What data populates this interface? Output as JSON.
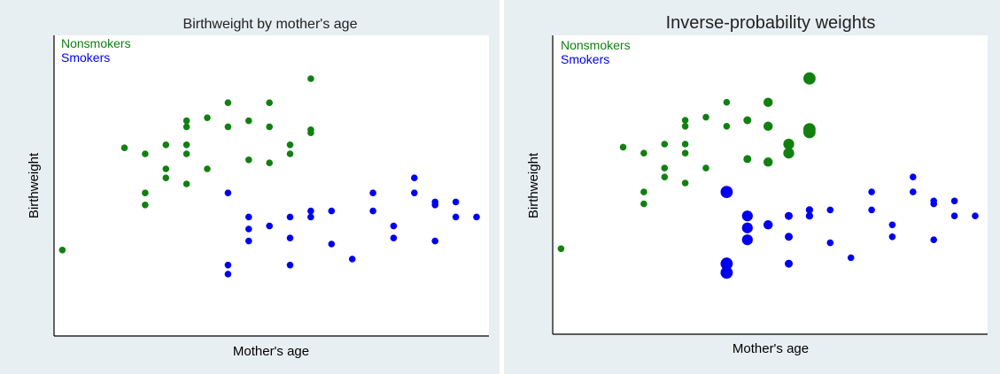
{
  "chart_data": [
    {
      "type": "scatter",
      "title": "Birthweight by mother's age",
      "xlabel": "Mother's age",
      "ylabel": "Birthweight",
      "grid": false,
      "axes_ticks": false,
      "xlim": [
        14,
        35
      ],
      "ylim": [
        0,
        100
      ],
      "legend": {
        "placement": "top-left",
        "entries": [
          "Nonsmokers",
          "Smokers"
        ]
      },
      "series": [
        {
          "name": "Nonsmokers",
          "color": "#118011",
          "points": [
            {
              "x": 14.4,
              "y": 28.6
            },
            {
              "x": 17.4,
              "y": 62.6
            },
            {
              "x": 18.4,
              "y": 60.6
            },
            {
              "x": 18.4,
              "y": 47.6
            },
            {
              "x": 18.4,
              "y": 43.6
            },
            {
              "x": 19.4,
              "y": 63.6
            },
            {
              "x": 19.4,
              "y": 55.6
            },
            {
              "x": 19.4,
              "y": 52.6
            },
            {
              "x": 20.4,
              "y": 71.6
            },
            {
              "x": 20.4,
              "y": 69.6
            },
            {
              "x": 20.4,
              "y": 63.6
            },
            {
              "x": 20.4,
              "y": 60.6
            },
            {
              "x": 20.4,
              "y": 50.6
            },
            {
              "x": 21.4,
              "y": 72.6
            },
            {
              "x": 21.4,
              "y": 55.6
            },
            {
              "x": 22.4,
              "y": 77.6
            },
            {
              "x": 22.4,
              "y": 69.6
            },
            {
              "x": 23.4,
              "y": 71.6
            },
            {
              "x": 23.4,
              "y": 58.6
            },
            {
              "x": 24.4,
              "y": 77.6
            },
            {
              "x": 24.4,
              "y": 69.6
            },
            {
              "x": 24.4,
              "y": 57.6
            },
            {
              "x": 25.4,
              "y": 63.6
            },
            {
              "x": 25.4,
              "y": 60.6
            },
            {
              "x": 26.4,
              "y": 85.6
            },
            {
              "x": 26.4,
              "y": 68.6
            },
            {
              "x": 26.4,
              "y": 67.6
            }
          ]
        },
        {
          "name": "Smokers",
          "color": "#0000f0",
          "points": [
            {
              "x": 22.4,
              "y": 47.6
            },
            {
              "x": 22.4,
              "y": 23.6
            },
            {
              "x": 22.4,
              "y": 20.6
            },
            {
              "x": 23.4,
              "y": 39.6
            },
            {
              "x": 23.4,
              "y": 35.6
            },
            {
              "x": 23.4,
              "y": 31.6
            },
            {
              "x": 24.4,
              "y": 36.6
            },
            {
              "x": 25.4,
              "y": 39.6
            },
            {
              "x": 25.4,
              "y": 32.6
            },
            {
              "x": 25.4,
              "y": 23.6
            },
            {
              "x": 26.4,
              "y": 41.6
            },
            {
              "x": 26.4,
              "y": 39.6
            },
            {
              "x": 27.4,
              "y": 41.6
            },
            {
              "x": 27.4,
              "y": 30.6
            },
            {
              "x": 28.4,
              "y": 25.6
            },
            {
              "x": 29.4,
              "y": 47.6
            },
            {
              "x": 29.4,
              "y": 41.6
            },
            {
              "x": 30.4,
              "y": 36.6
            },
            {
              "x": 30.4,
              "y": 32.6
            },
            {
              "x": 31.4,
              "y": 52.6
            },
            {
              "x": 31.4,
              "y": 47.6
            },
            {
              "x": 32.4,
              "y": 44.6
            },
            {
              "x": 32.4,
              "y": 43.6
            },
            {
              "x": 32.4,
              "y": 31.6
            },
            {
              "x": 33.4,
              "y": 44.6
            },
            {
              "x": 33.4,
              "y": 39.6
            },
            {
              "x": 34.4,
              "y": 39.6
            }
          ]
        }
      ]
    },
    {
      "type": "scatter",
      "title": "Inverse-probability weights",
      "xlabel": "Mother's age",
      "ylabel": "Birthweight",
      "grid": false,
      "axes_ticks": false,
      "xlim": [
        14,
        35
      ],
      "ylim": [
        0,
        100
      ],
      "legend": {
        "placement": "top-left",
        "entries": [
          "Nonsmokers",
          "Smokers"
        ]
      },
      "marker_size_encodes": "inverse-probability weight (relative)",
      "series": [
        {
          "name": "Nonsmokers",
          "color": "#118011",
          "points": [
            {
              "x": 14.4,
              "y": 28.6,
              "w": 1
            },
            {
              "x": 17.4,
              "y": 62.6,
              "w": 1
            },
            {
              "x": 18.4,
              "y": 60.6,
              "w": 1
            },
            {
              "x": 18.4,
              "y": 47.6,
              "w": 1
            },
            {
              "x": 18.4,
              "y": 43.6,
              "w": 1
            },
            {
              "x": 19.4,
              "y": 63.6,
              "w": 1
            },
            {
              "x": 19.4,
              "y": 55.6,
              "w": 1
            },
            {
              "x": 19.4,
              "y": 52.6,
              "w": 1
            },
            {
              "x": 20.4,
              "y": 71.6,
              "w": 1
            },
            {
              "x": 20.4,
              "y": 69.6,
              "w": 1
            },
            {
              "x": 20.4,
              "y": 63.6,
              "w": 1
            },
            {
              "x": 20.4,
              "y": 60.6,
              "w": 1
            },
            {
              "x": 20.4,
              "y": 50.6,
              "w": 1
            },
            {
              "x": 21.4,
              "y": 72.6,
              "w": 1
            },
            {
              "x": 21.4,
              "y": 55.6,
              "w": 1
            },
            {
              "x": 22.4,
              "y": 77.6,
              "w": 1
            },
            {
              "x": 22.4,
              "y": 69.6,
              "w": 1
            },
            {
              "x": 23.4,
              "y": 71.6,
              "w": 1.4
            },
            {
              "x": 23.4,
              "y": 58.6,
              "w": 1.4
            },
            {
              "x": 24.4,
              "y": 77.6,
              "w": 1.9
            },
            {
              "x": 24.4,
              "y": 69.6,
              "w": 1.9
            },
            {
              "x": 24.4,
              "y": 57.6,
              "w": 1.9
            },
            {
              "x": 25.4,
              "y": 63.6,
              "w": 2.6
            },
            {
              "x": 25.4,
              "y": 60.6,
              "w": 2.6
            },
            {
              "x": 26.4,
              "y": 85.6,
              "w": 3.3
            },
            {
              "x": 26.4,
              "y": 68.6,
              "w": 3.3
            },
            {
              "x": 26.4,
              "y": 67.6,
              "w": 3.3
            }
          ]
        },
        {
          "name": "Smokers",
          "color": "#0000f0",
          "points": [
            {
              "x": 22.4,
              "y": 47.6,
              "w": 3.3
            },
            {
              "x": 22.4,
              "y": 23.6,
              "w": 3.3
            },
            {
              "x": 22.4,
              "y": 20.6,
              "w": 3.3
            },
            {
              "x": 23.4,
              "y": 39.6,
              "w": 2.6
            },
            {
              "x": 23.4,
              "y": 35.6,
              "w": 2.6
            },
            {
              "x": 23.4,
              "y": 31.6,
              "w": 2.6
            },
            {
              "x": 24.4,
              "y": 36.6,
              "w": 1.9
            },
            {
              "x": 25.4,
              "y": 39.6,
              "w": 1.4
            },
            {
              "x": 25.4,
              "y": 32.6,
              "w": 1.4
            },
            {
              "x": 25.4,
              "y": 23.6,
              "w": 1.4
            },
            {
              "x": 26.4,
              "y": 41.6,
              "w": 1.2
            },
            {
              "x": 26.4,
              "y": 39.6,
              "w": 1.2
            },
            {
              "x": 27.4,
              "y": 41.6,
              "w": 1
            },
            {
              "x": 27.4,
              "y": 30.6,
              "w": 1
            },
            {
              "x": 28.4,
              "y": 25.6,
              "w": 1
            },
            {
              "x": 29.4,
              "y": 47.6,
              "w": 1
            },
            {
              "x": 29.4,
              "y": 41.6,
              "w": 1
            },
            {
              "x": 30.4,
              "y": 36.6,
              "w": 1
            },
            {
              "x": 30.4,
              "y": 32.6,
              "w": 1
            },
            {
              "x": 31.4,
              "y": 52.6,
              "w": 1
            },
            {
              "x": 31.4,
              "y": 47.6,
              "w": 1
            },
            {
              "x": 32.4,
              "y": 44.6,
              "w": 1
            },
            {
              "x": 32.4,
              "y": 43.6,
              "w": 1
            },
            {
              "x": 32.4,
              "y": 31.6,
              "w": 1
            },
            {
              "x": 33.4,
              "y": 44.6,
              "w": 1
            },
            {
              "x": 33.4,
              "y": 39.6,
              "w": 1
            },
            {
              "x": 34.4,
              "y": 39.6,
              "w": 1
            }
          ]
        }
      ]
    }
  ]
}
